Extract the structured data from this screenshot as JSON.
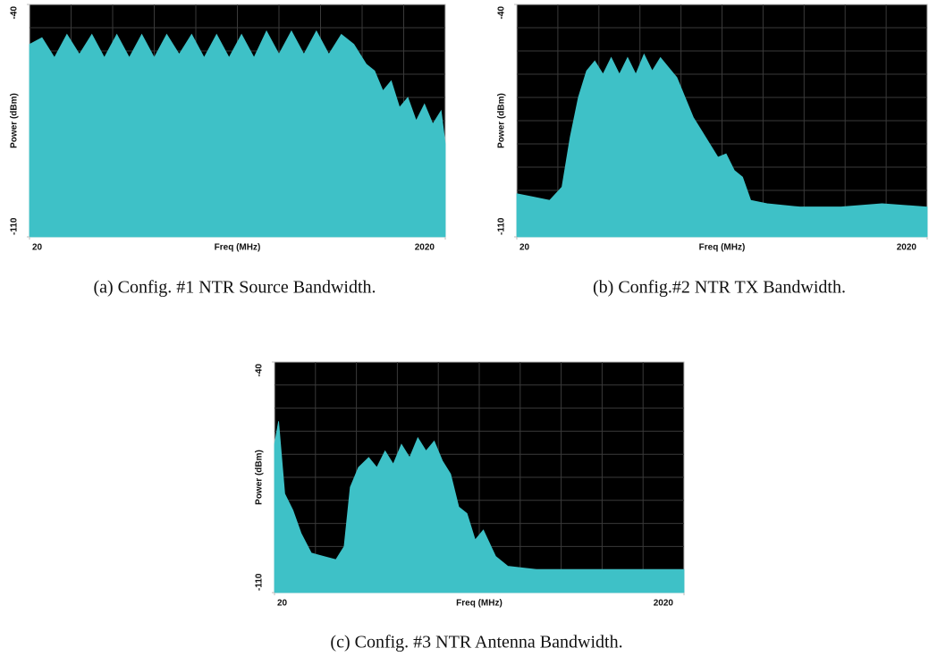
{
  "chart_data": [
    {
      "type": "area",
      "caption": "(a) Config. #1 NTR Source Bandwidth.",
      "xlabel": "Freq (MHz)",
      "ylabel": "Power (dBm)",
      "x": [
        20,
        80,
        140,
        200,
        260,
        320,
        380,
        440,
        500,
        560,
        620,
        680,
        740,
        800,
        860,
        920,
        980,
        1040,
        1100,
        1160,
        1220,
        1280,
        1340,
        1400,
        1460,
        1520,
        1580,
        1640,
        1680,
        1720,
        1760,
        1800,
        1840,
        1880,
        1920,
        1960,
        2000,
        2020
      ],
      "values": [
        -52,
        -50,
        -56,
        -49,
        -55,
        -49,
        -56,
        -49,
        -56,
        -49,
        -56,
        -49,
        -55,
        -49,
        -56,
        -49,
        -56,
        -49,
        -56,
        -48,
        -55,
        -48,
        -55,
        -48,
        -55,
        -49,
        -52,
        -58,
        -60,
        -66,
        -63,
        -71,
        -68,
        -75,
        -70,
        -76,
        -72,
        -82
      ],
      "color": "#3ec1c7",
      "xlim": [
        20,
        2020
      ],
      "ylim": [
        -110,
        -40
      ],
      "xticks": [
        20,
        2020
      ],
      "yticks": [
        -110,
        -40
      ],
      "grid": true
    },
    {
      "type": "area",
      "caption": "(b) Config.#2 NTR TX Bandwidth.",
      "xlabel": "Freq (MHz)",
      "ylabel": "Power (dBm)",
      "x": [
        20,
        100,
        180,
        240,
        280,
        320,
        360,
        400,
        440,
        480,
        520,
        560,
        600,
        640,
        680,
        720,
        760,
        800,
        840,
        880,
        920,
        960,
        1000,
        1040,
        1080,
        1120,
        1160,
        1240,
        1400,
        1600,
        1800,
        2020
      ],
      "values": [
        -97,
        -98,
        -99,
        -95,
        -80,
        -68,
        -60,
        -57,
        -61,
        -56,
        -61,
        -56,
        -61,
        -55,
        -60,
        -56,
        -59,
        -62,
        -68,
        -74,
        -78,
        -82,
        -86,
        -85,
        -90,
        -92,
        -99,
        -100,
        -101,
        -101,
        -100,
        -101
      ],
      "color": "#3ec1c7",
      "xlim": [
        20,
        2020
      ],
      "ylim": [
        -110,
        -40
      ],
      "xticks": [
        20,
        2020
      ],
      "yticks": [
        -110,
        -40
      ],
      "grid": true
    },
    {
      "type": "area",
      "caption": "(c) Config. #3 NTR Antenna Bandwidth.",
      "xlabel": "Freq (MHz)",
      "ylabel": "Power (dBm)",
      "x": [
        20,
        40,
        70,
        110,
        150,
        200,
        260,
        320,
        360,
        390,
        430,
        480,
        520,
        560,
        600,
        640,
        680,
        720,
        760,
        800,
        840,
        880,
        920,
        960,
        1000,
        1040,
        1100,
        1160,
        1300,
        1500,
        1700,
        1900,
        2020
      ],
      "values": [
        -65,
        -58,
        -80,
        -85,
        -92,
        -98,
        -99,
        -100,
        -96,
        -78,
        -72,
        -69,
        -72,
        -67,
        -71,
        -65,
        -69,
        -63,
        -67,
        -64,
        -70,
        -74,
        -84,
        -86,
        -94,
        -91,
        -99,
        -102,
        -103,
        -103,
        -103,
        -103,
        -103
      ],
      "color": "#3ec1c7",
      "xlim": [
        20,
        2020
      ],
      "ylim": [
        -110,
        -40
      ],
      "xticks": [
        20,
        2020
      ],
      "yticks": [
        -110,
        -40
      ],
      "grid": true
    }
  ]
}
